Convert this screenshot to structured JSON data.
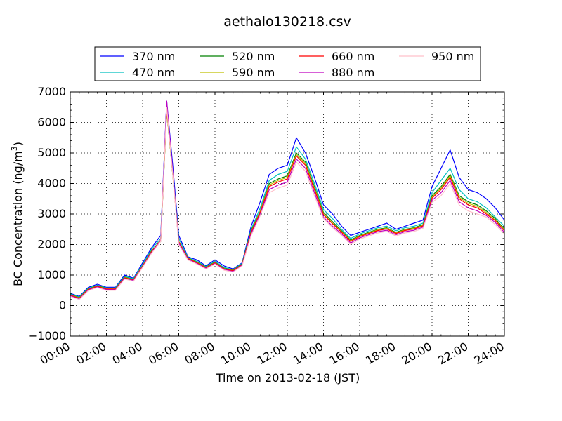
{
  "chart_data": {
    "type": "line",
    "title": "aethalo130218.csv",
    "xlabel": "Time on 2013-02-18 (JST)",
    "ylabel_main": "BC Concentration (ng/m",
    "ylabel_sup": "3",
    "ylabel_close": ")",
    "xlim": [
      "00:00",
      "24:00"
    ],
    "ylim": [
      -1000,
      7000
    ],
    "grid": true,
    "legend_position": "top-center",
    "xticks": [
      "00:00",
      "02:00",
      "04:00",
      "06:00",
      "08:00",
      "10:00",
      "12:00",
      "14:00",
      "16:00",
      "18:00",
      "20:00",
      "22:00",
      "24:00"
    ],
    "yticks": [
      "−1000",
      "0",
      "1000",
      "2000",
      "3000",
      "4000",
      "5000",
      "6000",
      "7000"
    ],
    "x": [
      "00:00",
      "00:30",
      "01:00",
      "01:30",
      "02:00",
      "02:30",
      "03:00",
      "03:30",
      "04:00",
      "04:30",
      "05:00",
      "05:20",
      "05:40",
      "06:00",
      "06:30",
      "07:00",
      "07:30",
      "08:00",
      "08:30",
      "09:00",
      "09:30",
      "10:00",
      "10:30",
      "11:00",
      "11:30",
      "12:00",
      "12:30",
      "13:00",
      "13:30",
      "14:00",
      "14:30",
      "15:00",
      "15:30",
      "16:00",
      "16:30",
      "17:00",
      "17:30",
      "18:00",
      "18:30",
      "19:00",
      "19:30",
      "20:00",
      "20:30",
      "21:00",
      "21:30",
      "22:00",
      "22:30",
      "23:00",
      "23:30",
      "24:00"
    ],
    "series": [
      {
        "name": "370 nm",
        "color": "#0000ff",
        "values": [
          400,
          300,
          600,
          700,
          600,
          600,
          1000,
          900,
          1400,
          1900,
          2300,
          6700,
          4600,
          2300,
          1600,
          1500,
          1300,
          1500,
          1300,
          1200,
          1400,
          2600,
          3400,
          4300,
          4500,
          4600,
          5500,
          5000,
          4200,
          3300,
          3000,
          2600,
          2300,
          2400,
          2500,
          2600,
          2700,
          2500,
          2600,
          2700,
          2800,
          3900,
          4500,
          5100,
          4200,
          3800,
          3700,
          3500,
          3200,
          2800
        ]
      },
      {
        "name": "470 nm",
        "color": "#00bfbf",
        "values": [
          380,
          280,
          570,
          670,
          580,
          580,
          960,
          880,
          1350,
          1850,
          2200,
          6500,
          4400,
          2200,
          1580,
          1450,
          1280,
          1450,
          1250,
          1180,
          1380,
          2500,
          3200,
          4100,
          4300,
          4400,
          5200,
          4800,
          4000,
          3150,
          2850,
          2500,
          2200,
          2350,
          2450,
          2550,
          2600,
          2450,
          2550,
          2600,
          2700,
          3700,
          4100,
          4500,
          3800,
          3500,
          3400,
          3200,
          2900,
          2600
        ]
      },
      {
        "name": "520 nm",
        "color": "#008000",
        "values": [
          360,
          260,
          550,
          650,
          560,
          560,
          930,
          860,
          1300,
          1800,
          2100,
          6400,
          4300,
          2100,
          1560,
          1420,
          1260,
          1420,
          1220,
          1160,
          1360,
          2450,
          3100,
          4000,
          4150,
          4250,
          5000,
          4700,
          3900,
          3050,
          2750,
          2450,
          2150,
          2300,
          2400,
          2500,
          2550,
          2400,
          2500,
          2550,
          2650,
          3600,
          3900,
          4300,
          3600,
          3400,
          3300,
          3100,
          2850,
          2500
        ]
      },
      {
        "name": "590 nm",
        "color": "#bfbf00",
        "values": [
          350,
          250,
          540,
          640,
          550,
          550,
          920,
          850,
          1300,
          1780,
          2150,
          6400,
          4300,
          2100,
          1550,
          1410,
          1250,
          1410,
          1210,
          1150,
          1350,
          2420,
          3080,
          3950,
          4100,
          4200,
          4950,
          4650,
          3850,
          3000,
          2700,
          2420,
          2120,
          2280,
          2380,
          2480,
          2530,
          2380,
          2480,
          2530,
          2630,
          3550,
          3850,
          4250,
          3550,
          3350,
          3250,
          3050,
          2800,
          2480
        ]
      },
      {
        "name": "660 nm",
        "color": "#ff0000",
        "values": [
          340,
          240,
          530,
          630,
          540,
          540,
          910,
          840,
          1290,
          1770,
          2140,
          6450,
          4350,
          2080,
          1540,
          1400,
          1240,
          1400,
          1200,
          1140,
          1340,
          2400,
          3050,
          3900,
          4050,
          4150,
          4900,
          4600,
          3800,
          2980,
          2680,
          2400,
          2100,
          2260,
          2360,
          2460,
          2510,
          2360,
          2460,
          2510,
          2610,
          3520,
          3800,
          4200,
          3500,
          3300,
          3200,
          3000,
          2780,
          2450
        ]
      },
      {
        "name": "880 nm",
        "color": "#bf00bf",
        "values": [
          320,
          220,
          510,
          610,
          520,
          520,
          890,
          820,
          1270,
          1740,
          2120,
          6700,
          4400,
          2050,
          1520,
          1380,
          1220,
          1380,
          1180,
          1120,
          1320,
          2350,
          3000,
          3800,
          3950,
          4050,
          4800,
          4500,
          3700,
          2900,
          2600,
          2350,
          2050,
          2220,
          2320,
          2420,
          2470,
          2320,
          2420,
          2470,
          2570,
          3450,
          3700,
          4100,
          3400,
          3200,
          3100,
          2950,
          2720,
          2400
        ]
      },
      {
        "name": "950 nm",
        "color": "#ffc0cb",
        "values": [
          300,
          200,
          490,
          590,
          500,
          500,
          870,
          800,
          1250,
          1720,
          2100,
          6500,
          4300,
          2000,
          1500,
          1360,
          1200,
          1360,
          1160,
          1100,
          1300,
          2300,
          2950,
          3700,
          3850,
          3950,
          4700,
          4400,
          3600,
          2850,
          2550,
          2300,
          2000,
          2180,
          2280,
          2380,
          2430,
          2280,
          2380,
          2430,
          2530,
          3380,
          3600,
          4000,
          3300,
          3100,
          3000,
          2900,
          2650,
          2350
        ]
      }
    ]
  }
}
